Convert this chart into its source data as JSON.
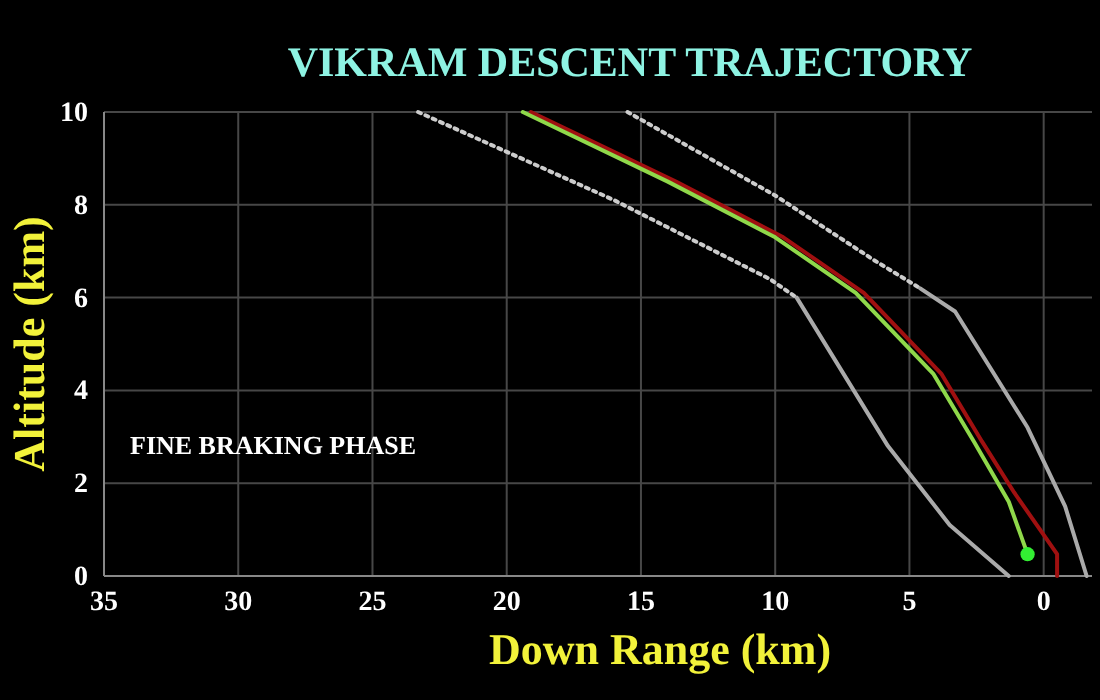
{
  "chart_data": {
    "type": "line",
    "title": "VIKRAM DESCENT TRAJECTORY",
    "xlabel": "Down Range (km)",
    "ylabel": "Altitude (km)",
    "annotations": [
      "FINE BRAKING PHASE"
    ],
    "xlim": [
      35,
      -1.8
    ],
    "xticks": [
      35,
      30,
      25,
      20,
      15,
      10,
      5,
      0
    ],
    "ylim": [
      0,
      10
    ],
    "yticks": [
      0,
      2,
      4,
      6,
      8,
      10
    ],
    "grid": true,
    "series": [
      {
        "color": "#cccccc",
        "line_style": "dotted",
        "x": [
          23.3,
          16,
          10.2,
          9.2
        ],
        "values": [
          10,
          8.1,
          6.4,
          6.0
        ]
      },
      {
        "color": "#aaaaaa",
        "line_style": "solid",
        "x": [
          9.2,
          5.8,
          3.5,
          1.3
        ],
        "values": [
          6.0,
          2.8,
          1.1,
          0
        ]
      },
      {
        "color": "#cccccc",
        "line_style": "dotted",
        "x": [
          15.5,
          10,
          6.3,
          4.6
        ],
        "values": [
          10,
          8.2,
          6.8,
          6.2
        ]
      },
      {
        "color": "#aaaaaa",
        "line_style": "solid",
        "x": [
          4.6,
          3.3,
          0.6,
          -0.8,
          -1.6
        ],
        "values": [
          6.2,
          5.7,
          3.2,
          1.5,
          0
        ]
      },
      {
        "color": "#a01010",
        "line_style": "solid",
        "x": [
          19.1,
          13.7,
          9.7,
          6.7,
          3.8,
          2.3,
          1.1,
          -0.5,
          -0.5
        ],
        "values": [
          10,
          8.5,
          7.3,
          6.1,
          4.35,
          2.9,
          1.8,
          0.47,
          0
        ]
      },
      {
        "color": "#8fd84a",
        "line_style": "solid",
        "x": [
          19.4,
          14,
          10,
          7,
          4.1,
          2.6,
          1.3,
          0.6
        ],
        "values": [
          10,
          8.5,
          7.3,
          6.1,
          4.35,
          2.9,
          1.6,
          0.47
        ]
      },
      {
        "type": "scatter",
        "color": "#33ee33",
        "marker": "circle",
        "x": [
          0.6
        ],
        "values": [
          0.47
        ]
      }
    ]
  }
}
